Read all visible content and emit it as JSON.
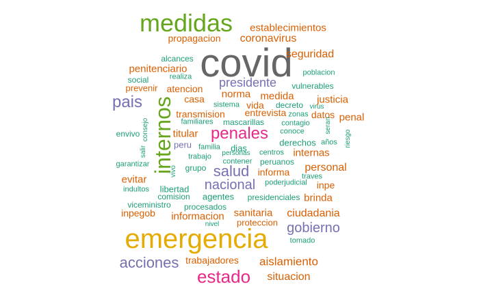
{
  "colors": {
    "gray": "#666666",
    "green": "#66a61e",
    "orange": "#d95f02",
    "teal": "#1b9e77",
    "purple": "#7570b3",
    "magenta": "#e7298a",
    "gold": "#e6ab02"
  },
  "words": [
    {
      "text": "covid",
      "color": "gray"
    },
    {
      "text": "emergencia",
      "color": "gold"
    },
    {
      "text": "medidas",
      "color": "green"
    },
    {
      "text": "internos",
      "color": "green"
    },
    {
      "text": "penales",
      "color": "magenta"
    },
    {
      "text": "estado",
      "color": "magenta"
    },
    {
      "text": "acciones",
      "color": "purple"
    },
    {
      "text": "pais",
      "color": "purple"
    },
    {
      "text": "salud",
      "color": "purple"
    },
    {
      "text": "nacional",
      "color": "purple"
    },
    {
      "text": "gobierno",
      "color": "purple"
    },
    {
      "text": "presidente",
      "color": "purple"
    },
    {
      "text": "coronavirus",
      "color": "orange"
    },
    {
      "text": "establecimientos",
      "color": "orange"
    },
    {
      "text": "propagacion",
      "color": "orange"
    },
    {
      "text": "seguridad",
      "color": "orange"
    },
    {
      "text": "penitenciario",
      "color": "orange"
    },
    {
      "text": "prevenir",
      "color": "orange"
    },
    {
      "text": "atencion",
      "color": "orange"
    },
    {
      "text": "norma",
      "color": "orange"
    },
    {
      "text": "medida",
      "color": "orange"
    },
    {
      "text": "justicia",
      "color": "orange"
    },
    {
      "text": "casa",
      "color": "orange"
    },
    {
      "text": "vida",
      "color": "orange"
    },
    {
      "text": "transmision",
      "color": "orange"
    },
    {
      "text": "entrevista",
      "color": "orange"
    },
    {
      "text": "datos",
      "color": "orange"
    },
    {
      "text": "penal",
      "color": "orange"
    },
    {
      "text": "titular",
      "color": "orange"
    },
    {
      "text": "internas",
      "color": "orange"
    },
    {
      "text": "personal",
      "color": "orange"
    },
    {
      "text": "informa",
      "color": "orange"
    },
    {
      "text": "evitar",
      "color": "orange"
    },
    {
      "text": "inpe",
      "color": "orange"
    },
    {
      "text": "brinda",
      "color": "orange"
    },
    {
      "text": "sanitaria",
      "color": "orange"
    },
    {
      "text": "ciudadania",
      "color": "orange"
    },
    {
      "text": "inpegob",
      "color": "orange"
    },
    {
      "text": "informacion",
      "color": "orange"
    },
    {
      "text": "proteccion",
      "color": "orange"
    },
    {
      "text": "trabajadores",
      "color": "orange"
    },
    {
      "text": "aislamiento",
      "color": "orange"
    },
    {
      "text": "situacion",
      "color": "orange"
    },
    {
      "text": "alcances",
      "color": "teal"
    },
    {
      "text": "realiza",
      "color": "teal"
    },
    {
      "text": "social",
      "color": "teal"
    },
    {
      "text": "poblacion",
      "color": "teal"
    },
    {
      "text": "vulnerables",
      "color": "teal"
    },
    {
      "text": "sistema",
      "color": "teal"
    },
    {
      "text": "decreto",
      "color": "teal"
    },
    {
      "text": "zonas",
      "color": "teal"
    },
    {
      "text": "virus",
      "color": "teal"
    },
    {
      "text": "contagio",
      "color": "teal"
    },
    {
      "text": "conoce",
      "color": "teal"
    },
    {
      "text": "seran",
      "color": "teal"
    },
    {
      "text": "riesgo",
      "color": "teal"
    },
    {
      "text": "familiares",
      "color": "teal"
    },
    {
      "text": "mascarillas",
      "color": "teal"
    },
    {
      "text": "envivo",
      "color": "teal"
    },
    {
      "text": "consejo",
      "color": "teal"
    },
    {
      "text": "salir",
      "color": "teal"
    },
    {
      "text": "peru",
      "color": "purple"
    },
    {
      "text": "familia",
      "color": "teal"
    },
    {
      "text": "dias",
      "color": "teal"
    },
    {
      "text": "derechos",
      "color": "teal"
    },
    {
      "text": "años",
      "color": "teal"
    },
    {
      "text": "trabajo",
      "color": "teal"
    },
    {
      "text": "personas",
      "color": "teal"
    },
    {
      "text": "centros",
      "color": "teal"
    },
    {
      "text": "garantizar",
      "color": "teal"
    },
    {
      "text": "vivo",
      "color": "teal"
    },
    {
      "text": "grupo",
      "color": "teal"
    },
    {
      "text": "contener",
      "color": "teal"
    },
    {
      "text": "peruanos",
      "color": "teal"
    },
    {
      "text": "traves",
      "color": "teal"
    },
    {
      "text": "indultos",
      "color": "teal"
    },
    {
      "text": "libertad",
      "color": "teal"
    },
    {
      "text": "poderjudicial",
      "color": "teal"
    },
    {
      "text": "comision",
      "color": "teal"
    },
    {
      "text": "agentes",
      "color": "teal"
    },
    {
      "text": "presidenciales",
      "color": "teal"
    },
    {
      "text": "viceministro",
      "color": "teal"
    },
    {
      "text": "procesados",
      "color": "teal"
    },
    {
      "text": "nivel",
      "color": "teal"
    },
    {
      "text": "tomado",
      "color": "teal"
    }
  ]
}
